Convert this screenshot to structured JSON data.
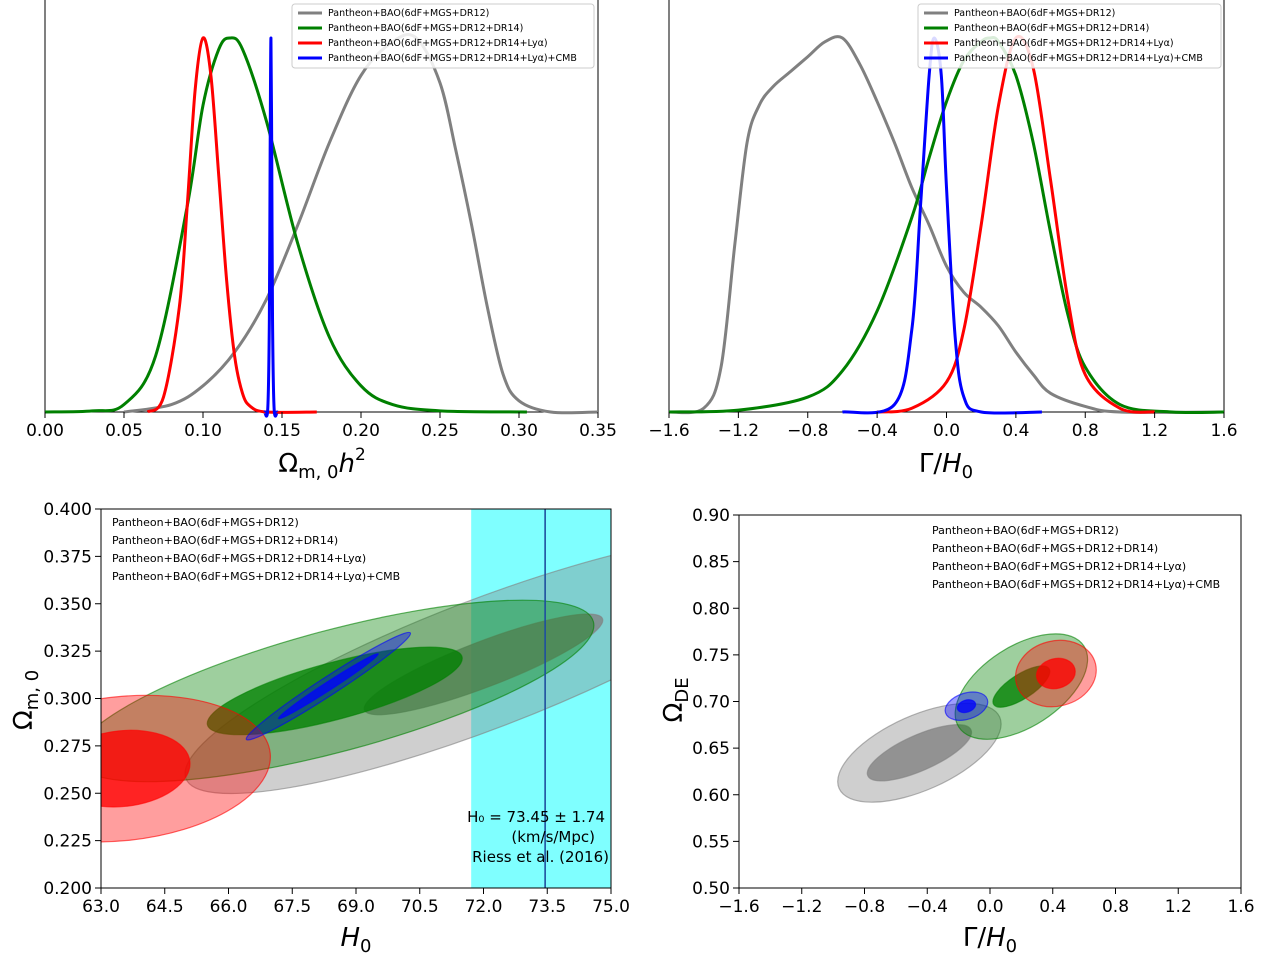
{
  "colors": {
    "gray": "#808080",
    "green": "#008000",
    "red": "#ff0000",
    "blue": "#0000ff",
    "riess_band": "#00ffff",
    "riess_line": "#1f4f9f"
  },
  "legend": [
    "Pantheon+BAO(6dF+MGS+DR12)",
    "Pantheon+BAO(6dF+MGS+DR12+DR14)",
    "Pantheon+BAO(6dF+MGS+DR12+DR14+Lyα)",
    "Pantheon+BAO(6dF+MGS+DR12+DR14+Lyα)+CMB"
  ],
  "annotation": {
    "line1": "H₀ = 73.45 ± 1.74",
    "line2": "(km/s/Mpc)",
    "line3": "Riess et al. (2016)"
  },
  "chart_data": [
    {
      "type": "line",
      "panel": "top-left",
      "xlabel": "Ω_{m,0}h²",
      "ylabel": "",
      "xlim": [
        0.0,
        0.35
      ],
      "xticks": [
        "0.00",
        "0.05",
        "0.10",
        "0.15",
        "0.20",
        "0.25",
        "0.30",
        "0.35"
      ],
      "legend_position": "top-right",
      "series": [
        {
          "name": "Pantheon+BAO(6dF+MGS+DR12)",
          "color": "gray",
          "x": [
            0.05,
            0.08,
            0.1,
            0.12,
            0.14,
            0.16,
            0.18,
            0.2,
            0.22,
            0.235,
            0.25,
            0.26,
            0.27,
            0.28,
            0.29,
            0.3,
            0.32,
            0.35
          ],
          "y": [
            0.0,
            0.02,
            0.07,
            0.16,
            0.3,
            0.5,
            0.72,
            0.9,
            0.99,
            1.0,
            0.88,
            0.7,
            0.5,
            0.28,
            0.1,
            0.03,
            0.0,
            0.0
          ]
        },
        {
          "name": "Pantheon+BAO(6dF+MGS+DR12+DR14)",
          "color": "green",
          "x": [
            0.0,
            0.03,
            0.05,
            0.07,
            0.09,
            0.1,
            0.11,
            0.117,
            0.125,
            0.14,
            0.16,
            0.18,
            0.2,
            0.22,
            0.25,
            0.305
          ],
          "y": [
            0.0,
            0.003,
            0.02,
            0.15,
            0.55,
            0.82,
            0.97,
            1.0,
            0.97,
            0.78,
            0.45,
            0.2,
            0.07,
            0.02,
            0.003,
            0.0
          ]
        },
        {
          "name": "Pantheon+BAO(6dF+MGS+DR12+DR14+Lyα)",
          "color": "red",
          "x": [
            0.065,
            0.075,
            0.085,
            0.09,
            0.095,
            0.1,
            0.105,
            0.11,
            0.115,
            0.12,
            0.125,
            0.13,
            0.14,
            0.172
          ],
          "y": [
            0.0,
            0.04,
            0.28,
            0.55,
            0.86,
            1.0,
            0.9,
            0.63,
            0.35,
            0.15,
            0.05,
            0.015,
            0.0,
            0.0
          ]
        },
        {
          "name": "Pantheon+BAO(6dF+MGS+DR12+DR14+Lyα)+CMB",
          "color": "blue",
          "x": [
            0.139,
            0.141,
            0.142,
            0.1425,
            0.143,
            0.1435,
            0.144,
            0.145,
            0.147
          ],
          "y": [
            0.0,
            0.01,
            0.25,
            0.7,
            1.0,
            0.7,
            0.25,
            0.01,
            0.0
          ]
        }
      ]
    },
    {
      "type": "line",
      "panel": "top-right",
      "xlabel": "Γ/H₀",
      "ylabel": "",
      "xlim": [
        -1.6,
        1.6
      ],
      "xticks": [
        "−1.6",
        "−1.2",
        "−0.8",
        "−0.4",
        "0.0",
        "0.4",
        "0.8",
        "1.2",
        "1.6"
      ],
      "legend_position": "top-right",
      "series": [
        {
          "name": "Pantheon+BAO(6dF+MGS+DR12)",
          "color": "gray",
          "x": [
            -1.6,
            -1.4,
            -1.3,
            -1.22,
            -1.15,
            -1.08,
            -1.0,
            -0.9,
            -0.8,
            -0.7,
            -0.6,
            -0.5,
            -0.4,
            -0.3,
            -0.2,
            -0.1,
            0.0,
            0.1,
            0.2,
            0.3,
            0.4,
            0.5,
            0.6,
            0.8,
            1.0,
            1.6
          ],
          "y": [
            0.0,
            0.01,
            0.12,
            0.45,
            0.72,
            0.82,
            0.87,
            0.91,
            0.95,
            0.99,
            1.0,
            0.93,
            0.83,
            0.72,
            0.6,
            0.5,
            0.39,
            0.32,
            0.28,
            0.23,
            0.16,
            0.1,
            0.05,
            0.015,
            0.0,
            0.0
          ]
        },
        {
          "name": "Pantheon+BAO(6dF+MGS+DR12+DR14)",
          "color": "green",
          "x": [
            -1.6,
            -1.2,
            -0.8,
            -0.6,
            -0.4,
            -0.2,
            -0.1,
            0.0,
            0.1,
            0.2,
            0.25,
            0.3,
            0.4,
            0.5,
            0.6,
            0.7,
            0.8,
            1.0,
            1.3,
            1.6
          ],
          "y": [
            0.0,
            0.005,
            0.04,
            0.11,
            0.27,
            0.52,
            0.68,
            0.83,
            0.94,
            0.99,
            1.0,
            0.99,
            0.9,
            0.72,
            0.48,
            0.26,
            0.12,
            0.02,
            0.0,
            0.0
          ]
        },
        {
          "name": "Pantheon+BAO(6dF+MGS+DR12+DR14+Lyα)",
          "color": "red",
          "x": [
            -0.4,
            -0.2,
            0.0,
            0.1,
            0.2,
            0.3,
            0.4,
            0.5,
            0.6,
            0.7,
            0.8,
            1.0,
            1.2
          ],
          "y": [
            0.0,
            0.01,
            0.08,
            0.22,
            0.5,
            0.82,
            1.0,
            0.92,
            0.62,
            0.3,
            0.1,
            0.01,
            0.0
          ]
        },
        {
          "name": "Pantheon+BAO(6dF+MGS+DR12+DR14+Lyα)+CMB",
          "color": "blue",
          "x": [
            -0.6,
            -0.3,
            -0.2,
            -0.15,
            -0.1,
            -0.07,
            -0.03,
            0.0,
            0.05,
            0.1,
            0.2,
            0.55
          ],
          "y": [
            0.0,
            0.02,
            0.22,
            0.55,
            0.9,
            1.0,
            0.9,
            0.6,
            0.2,
            0.04,
            0.0,
            0.0
          ]
        }
      ]
    },
    {
      "type": "contour",
      "panel": "bottom-left",
      "xlabel": "H₀",
      "ylabel": "Ω_{m,0}",
      "xlim": [
        63.0,
        75.0
      ],
      "ylim": [
        0.2,
        0.4
      ],
      "xticks": [
        "63.0",
        "64.5",
        "66.0",
        "67.5",
        "69.0",
        "70.5",
        "72.0",
        "73.5",
        "75.0"
      ],
      "yticks": [
        "0.200",
        "0.225",
        "0.250",
        "0.275",
        "0.300",
        "0.325",
        "0.350",
        "0.375",
        "0.400"
      ],
      "legend_position": "top-left",
      "riess_h0": {
        "value": 73.45,
        "sigma": 1.74
      },
      "contours": [
        {
          "name": "Pantheon+BAO(6dF+MGS+DR12)",
          "color": "gray",
          "center": [
            72.0,
            0.318
          ],
          "outer": [
            15.0,
            0.034
          ],
          "inner": [
            6.0,
            0.012
          ],
          "angle_deg": -21
        },
        {
          "name": "Pantheon+BAO(6dF+MGS+DR12+DR14)",
          "color": "green",
          "center": [
            68.5,
            0.304
          ],
          "outer": [
            12.6,
            0.032
          ],
          "inner": [
            6.2,
            0.015
          ],
          "angle_deg": -15
        },
        {
          "name": "Pantheon+BAO(6dF+MGS+DR12+DR14+Lyα)",
          "color": "red",
          "center": [
            63.5,
            0.263
          ],
          "outer": [
            7.0,
            0.038
          ],
          "inner": [
            3.2,
            0.02
          ],
          "angle_deg": -6
        },
        {
          "name": "Pantheon+BAO(6dF+MGS+DR12+DR14+Lyα)+CMB",
          "color": "blue",
          "center": [
            68.35,
            0.3065
          ],
          "outer": [
            4.6,
            0.0048
          ],
          "inner": [
            2.8,
            0.0022
          ],
          "angle_deg": -33
        }
      ]
    },
    {
      "type": "contour",
      "panel": "bottom-right",
      "xlabel": "Γ/H₀",
      "ylabel": "Ω_{DE}",
      "xlim": [
        -1.6,
        1.6
      ],
      "ylim": [
        0.5,
        0.9
      ],
      "xticks": [
        "−1.6",
        "−1.2",
        "−0.8",
        "−0.4",
        "0.0",
        "0.4",
        "0.8",
        "1.2",
        "1.6"
      ],
      "yticks": [
        "0.50",
        "0.55",
        "0.60",
        "0.65",
        "0.70",
        "0.75",
        "0.80",
        "0.85",
        "0.90"
      ],
      "legend_position": "top-center",
      "contours": [
        {
          "name": "Pantheon+BAO(6dF+MGS+DR12)",
          "color": "gray",
          "center": [
            -0.45,
            0.645
          ],
          "outer": [
            1.12,
            0.04
          ],
          "inner": [
            0.72,
            0.019
          ],
          "angle_deg": -24
        },
        {
          "name": "Pantheon+BAO(6dF+MGS+DR12+DR14)",
          "color": "green",
          "center": [
            0.2,
            0.716
          ],
          "outer": [
            0.95,
            0.043
          ],
          "inner": [
            0.42,
            0.013
          ],
          "angle_deg": -33
        },
        {
          "name": "Pantheon+BAO(6dF+MGS+DR12+DR14+Lyα)",
          "color": "red",
          "center": [
            0.42,
            0.73
          ],
          "outer": [
            0.52,
            0.035
          ],
          "inner": [
            0.25,
            0.016
          ],
          "angle_deg": -14
        },
        {
          "name": "Pantheon+BAO(6dF+MGS+DR12+DR14+Lyα)+CMB",
          "color": "blue",
          "center": [
            -0.15,
            0.695
          ],
          "outer": [
            0.28,
            0.014
          ],
          "inner": [
            0.12,
            0.0065
          ],
          "angle_deg": -18
        }
      ]
    }
  ]
}
